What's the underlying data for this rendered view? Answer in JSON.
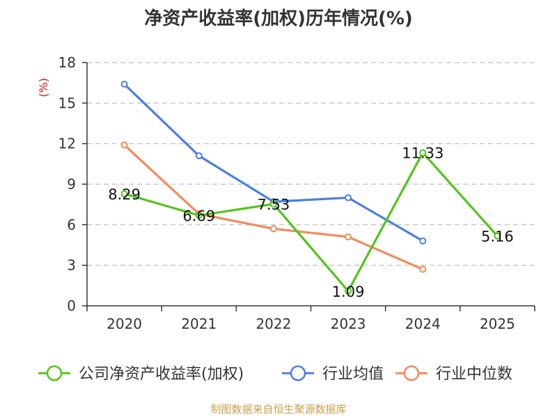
{
  "chart_data": {
    "type": "line",
    "title": "净资产收益率(加权)历年情况(%)",
    "ylabel": "(%)",
    "xlabel": "",
    "categories": [
      "2020",
      "2021",
      "2022",
      "2023",
      "2024",
      "2025"
    ],
    "ylim": [
      0,
      18
    ],
    "yticks": [
      0,
      3,
      6,
      9,
      12,
      15,
      18
    ],
    "grid": true,
    "legend_position": "bottom",
    "series": [
      {
        "name": "公司净资产收益率(加权)",
        "color": "#52c41a",
        "values": [
          8.29,
          6.69,
          7.53,
          1.09,
          11.33,
          5.16
        ],
        "data_labels": [
          "8.29",
          "6.69",
          "7.53",
          "1.09",
          "11.33",
          "5.16"
        ]
      },
      {
        "name": "行业均值",
        "color": "#4a7fe0",
        "values": [
          16.4,
          11.1,
          7.7,
          8.0,
          4.8,
          null
        ]
      },
      {
        "name": "行业中位数",
        "color": "#f5895a",
        "values": [
          11.9,
          6.8,
          5.7,
          5.1,
          2.7,
          null
        ]
      }
    ]
  },
  "source": "制图数据来自恒生聚源数据库"
}
